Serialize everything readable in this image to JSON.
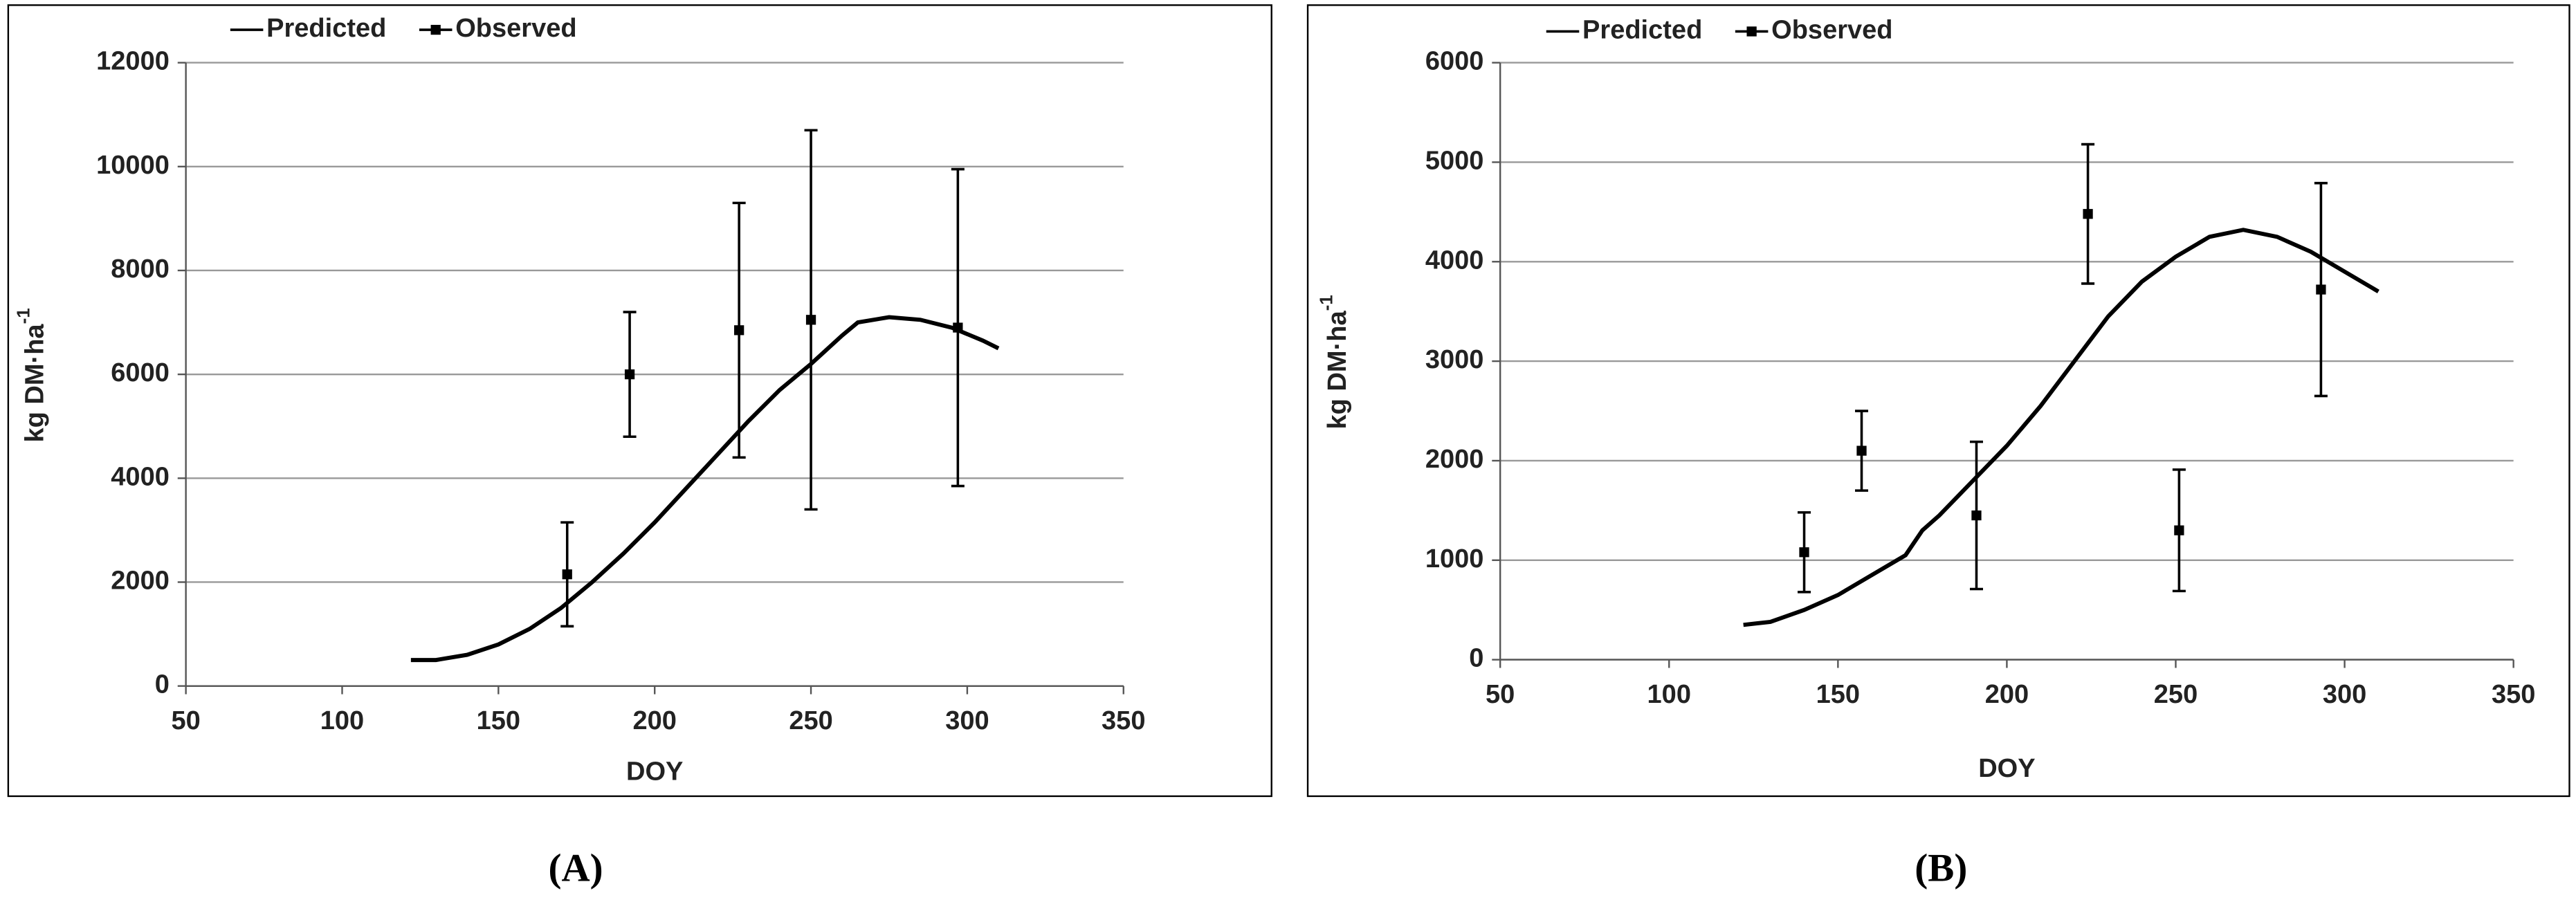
{
  "chart_data": [
    {
      "type": "line",
      "caption": "(A)",
      "x_label": "DOY",
      "y_label": "kg DM·ha",
      "y_label_sup": "-1",
      "xlim": [
        50,
        350
      ],
      "xticks": [
        50,
        100,
        150,
        200,
        250,
        300,
        350
      ],
      "ylim": [
        0,
        12000
      ],
      "yticks": [
        0,
        2000,
        4000,
        6000,
        8000,
        10000,
        12000
      ],
      "grid": true,
      "series": [
        {
          "name": "Predicted",
          "color": "#000000",
          "x": [
            122,
            130,
            140,
            150,
            160,
            170,
            180,
            190,
            200,
            210,
            220,
            230,
            240,
            250,
            260,
            265,
            275,
            285,
            295,
            305,
            310
          ],
          "values": [
            500,
            500,
            600,
            800,
            1100,
            1500,
            2000,
            2550,
            3150,
            3800,
            4450,
            5100,
            5700,
            6200,
            6750,
            7000,
            7100,
            7050,
            6900,
            6650,
            6500
          ]
        },
        {
          "name": "Observed",
          "color": "#000000",
          "x": [
            172,
            192,
            227,
            250,
            297
          ],
          "values": [
            2150,
            6000,
            6850,
            7050,
            6900
          ],
          "errors": [
            1000,
            1200,
            2450,
            3650,
            3050
          ]
        }
      ]
    },
    {
      "type": "line",
      "caption": "(B)",
      "x_label": "DOY",
      "y_label": "kg DM·ha",
      "y_label_sup": "-1",
      "xlim": [
        50,
        350
      ],
      "xticks": [
        50,
        100,
        150,
        200,
        250,
        300,
        350
      ],
      "ylim": [
        0,
        6000
      ],
      "yticks": [
        0,
        1000,
        2000,
        3000,
        4000,
        5000,
        6000
      ],
      "grid": true,
      "series": [
        {
          "name": "Predicted",
          "color": "#000000",
          "x": [
            122,
            130,
            140,
            150,
            160,
            170,
            175,
            180,
            190,
            200,
            210,
            220,
            230,
            240,
            250,
            260,
            270,
            280,
            290,
            300,
            310
          ],
          "values": [
            350,
            380,
            500,
            650,
            850,
            1050,
            1300,
            1450,
            1800,
            2150,
            2550,
            3000,
            3450,
            3800,
            4050,
            4250,
            4320,
            4250,
            4100,
            3900,
            3700
          ]
        },
        {
          "name": "Observed",
          "color": "#000000",
          "x": [
            140,
            157,
            191,
            224,
            251,
            293
          ],
          "values": [
            1080,
            2100,
            1450,
            4480,
            1300,
            3720
          ],
          "errors": [
            400,
            400,
            740,
            700,
            610,
            1070
          ]
        }
      ]
    }
  ]
}
